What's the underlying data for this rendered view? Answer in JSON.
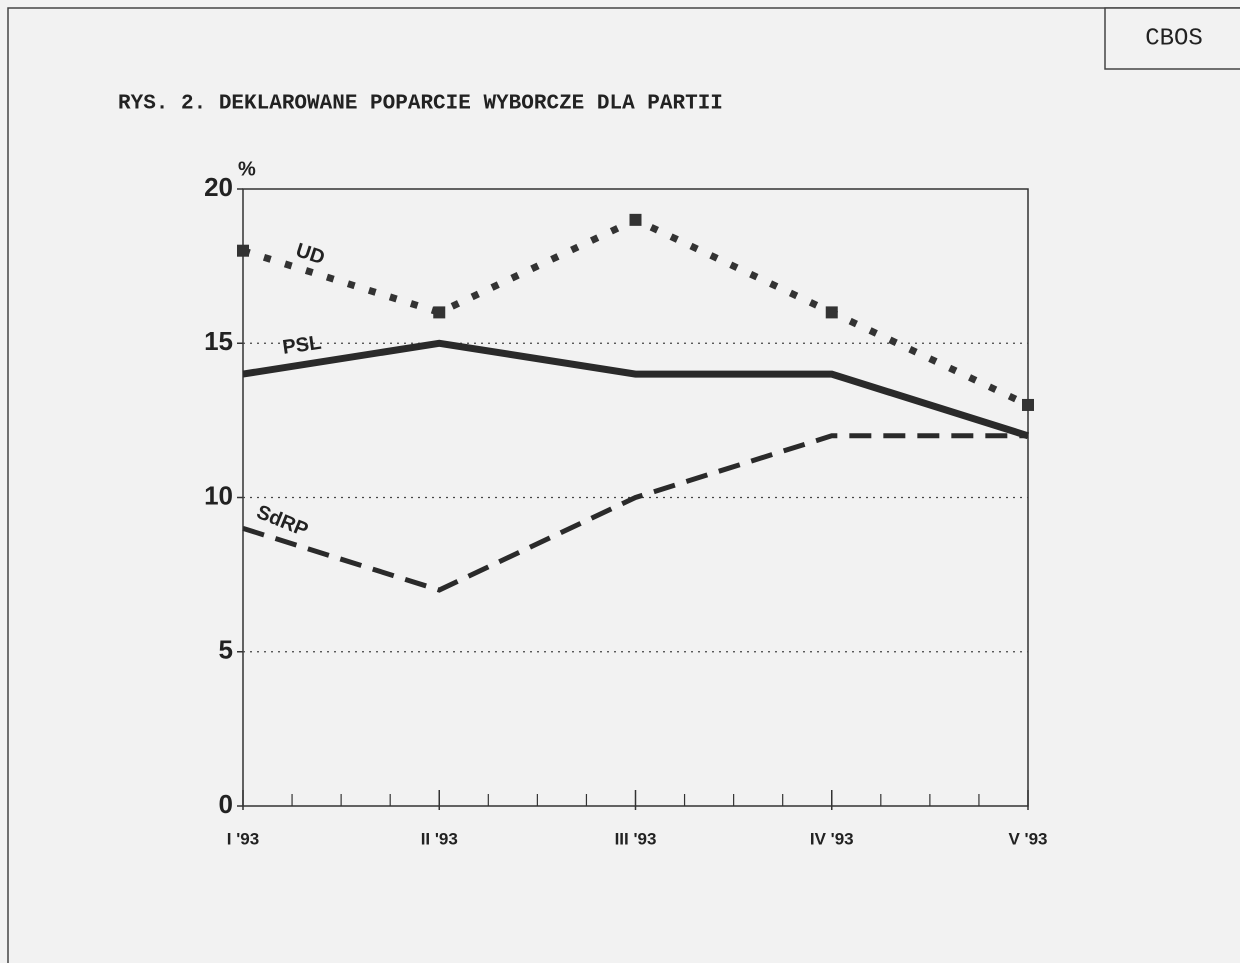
{
  "chart_data": {
    "type": "line",
    "title": "RYS. 2. DEKLAROWANE POPARCIE WYBORCZE DLA PARTII",
    "source": "CBOS",
    "y_axis_label": "%",
    "categories": [
      "I '93",
      "II '93",
      "III '93",
      "IV '93",
      "V '93"
    ],
    "series": [
      {
        "name": "UD",
        "color": "#333333",
        "line_style": "dotted",
        "values": [
          18,
          16,
          19,
          16,
          13
        ]
      },
      {
        "name": "PSL",
        "color": "#2a2a2a",
        "line_style": "solid",
        "values": [
          14,
          15,
          14,
          14,
          12
        ]
      },
      {
        "name": "SdRP",
        "color": "#2a2a2a",
        "line_style": "dashed",
        "values": [
          9,
          7,
          10,
          12,
          12
        ]
      }
    ],
    "ylim": [
      0,
      20
    ],
    "yticks": [
      0,
      5,
      10,
      15,
      20
    ],
    "grid": true
  }
}
